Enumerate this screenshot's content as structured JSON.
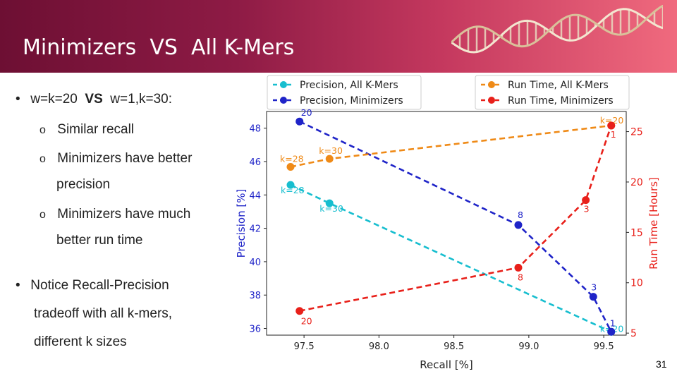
{
  "slide": {
    "title": "Minimizers  VS  All K-Mers",
    "bullet1": {
      "pre": "w=k=20  ",
      "vs": "VS",
      "post": "  w=1,k=30:"
    },
    "sub_bullets": [
      "Similar recall",
      "Minimizers have better",
      "precision",
      "Minimizers have much",
      "better run time"
    ],
    "bullet2_lines": [
      "Notice Recall-Precision",
      "tradeoff with all k-mers,",
      "different k sizes"
    ],
    "page_number": "31"
  },
  "colors": {
    "cyan": "#17becf",
    "blue": "#1f24c8",
    "orange": "#ef8a17",
    "red": "#e8201a"
  },
  "chart_data": {
    "type": "line",
    "title": "",
    "xlabel": "Recall [%]",
    "ylabel": "Precision [%]",
    "y2label": "Run Time [Hours]",
    "xlim": [
      97.25,
      99.65
    ],
    "ylim": [
      35.6,
      49.0
    ],
    "y2lim": [
      4.8,
      27.0
    ],
    "xticks": [
      "97.5",
      "98.0",
      "98.5",
      "99.0",
      "99.5"
    ],
    "xtick_values": [
      97.5,
      98.0,
      98.5,
      99.0,
      99.5
    ],
    "yticks": [
      "36",
      "38",
      "40",
      "42",
      "44",
      "46",
      "48"
    ],
    "ytick_values": [
      36,
      38,
      40,
      42,
      44,
      46,
      48
    ],
    "y2ticks": [
      "5",
      "10",
      "15",
      "20",
      "25"
    ],
    "y2tick_values": [
      5,
      10,
      15,
      20,
      25
    ],
    "legend": [
      "Precision, All K-Mers",
      "Precision, Minimizers",
      "Run Time, All K-Mers",
      "Run Time, Minimizers"
    ],
    "series": [
      {
        "name": "Precision, All K-Mers",
        "axis": "left",
        "color": "cyan",
        "points": [
          {
            "x": 97.41,
            "y": 44.6,
            "label": "k=28"
          },
          {
            "x": 97.67,
            "y": 43.5,
            "label": "k=30"
          },
          {
            "x": 99.55,
            "y": 35.8,
            "label": "k=20"
          }
        ]
      },
      {
        "name": "Precision, Minimizers",
        "axis": "left",
        "color": "blue",
        "points": [
          {
            "x": 97.47,
            "y": 48.4,
            "label": "20"
          },
          {
            "x": 98.93,
            "y": 42.2,
            "label": "8"
          },
          {
            "x": 99.43,
            "y": 37.9,
            "label": "3"
          },
          {
            "x": 99.55,
            "y": 35.8,
            "label": "1"
          }
        ]
      },
      {
        "name": "Run Time, All K-Mers",
        "axis": "right",
        "color": "orange",
        "points": [
          {
            "x": 97.41,
            "y": 21.5,
            "label": "k=28"
          },
          {
            "x": 97.67,
            "y": 22.3,
            "label": "k=30"
          },
          {
            "x": 99.55,
            "y": 25.6,
            "label": "k=20"
          }
        ]
      },
      {
        "name": "Run Time, Minimizers",
        "axis": "right",
        "color": "red",
        "points": [
          {
            "x": 97.47,
            "y": 7.2,
            "label": "20"
          },
          {
            "x": 98.93,
            "y": 11.5,
            "label": "8"
          },
          {
            "x": 99.38,
            "y": 18.2,
            "label": "3"
          },
          {
            "x": 99.55,
            "y": 25.6,
            "label": "1"
          }
        ]
      }
    ]
  }
}
